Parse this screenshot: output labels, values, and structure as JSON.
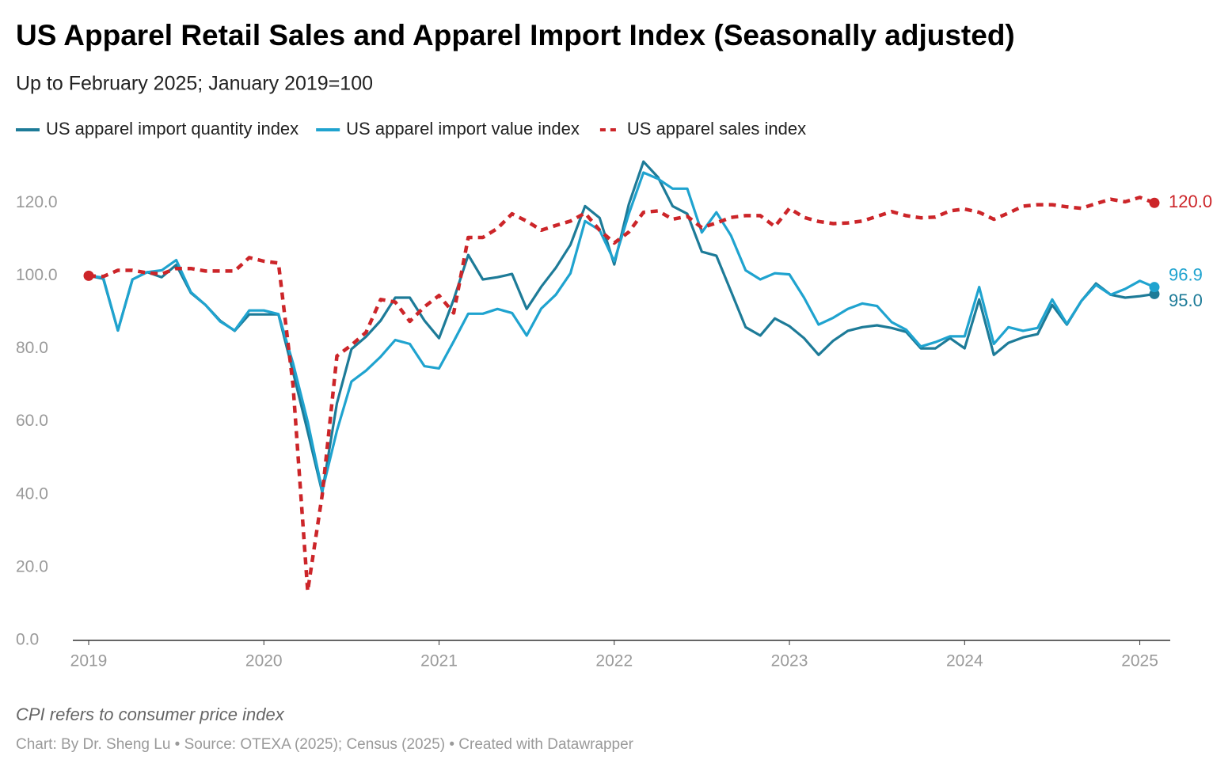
{
  "chart_data": {
    "type": "line",
    "title": "US Apparel Retail Sales and Apparel Import Index (Seasonally adjusted)",
    "subtitle": "Up to February 2025; January 2019=100",
    "note": "CPI refers to consumer price index",
    "source": "Chart: By Dr. Sheng Lu • Source: OTEXA (2025); Census (2025) • Created with Datawrapper",
    "x": [
      "2019-01",
      "2019-02",
      "2019-03",
      "2019-04",
      "2019-05",
      "2019-06",
      "2019-07",
      "2019-08",
      "2019-09",
      "2019-10",
      "2019-11",
      "2019-12",
      "2020-01",
      "2020-02",
      "2020-03",
      "2020-04",
      "2020-05",
      "2020-06",
      "2020-07",
      "2020-08",
      "2020-09",
      "2020-10",
      "2020-11",
      "2020-12",
      "2021-01",
      "2021-02",
      "2021-03",
      "2021-04",
      "2021-05",
      "2021-06",
      "2021-07",
      "2021-08",
      "2021-09",
      "2021-10",
      "2021-11",
      "2021-12",
      "2022-01",
      "2022-02",
      "2022-03",
      "2022-04",
      "2022-05",
      "2022-06",
      "2022-07",
      "2022-08",
      "2022-09",
      "2022-10",
      "2022-11",
      "2022-12",
      "2023-01",
      "2023-02",
      "2023-03",
      "2023-04",
      "2023-05",
      "2023-06",
      "2023-07",
      "2023-08",
      "2023-09",
      "2023-10",
      "2023-11",
      "2023-12",
      "2024-01",
      "2024-02",
      "2024-03",
      "2024-04",
      "2024-05",
      "2024-06",
      "2024-07",
      "2024-08",
      "2024-09",
      "2024-10",
      "2024-11",
      "2024-12",
      "2025-01",
      "2025-02"
    ],
    "xticks": [
      {
        "value": "2019-01",
        "label": "2019"
      },
      {
        "value": "2020-01",
        "label": "2020"
      },
      {
        "value": "2021-01",
        "label": "2021"
      },
      {
        "value": "2022-01",
        "label": "2022"
      },
      {
        "value": "2023-01",
        "label": "2023"
      },
      {
        "value": "2024-01",
        "label": "2024"
      },
      {
        "value": "2025-01",
        "label": "2025"
      }
    ],
    "ylim": [
      0,
      132
    ],
    "yticks": [
      {
        "value": 0,
        "label": "0.0"
      },
      {
        "value": 20,
        "label": "20.0"
      },
      {
        "value": 40,
        "label": "40.0"
      },
      {
        "value": 60,
        "label": "60.0"
      },
      {
        "value": 80,
        "label": "80.0"
      },
      {
        "value": 100,
        "label": "100.0"
      },
      {
        "value": 120,
        "label": "120.0"
      }
    ],
    "grid": false,
    "series": [
      {
        "name": "US apparel import quantity index",
        "color": "#1d7b98",
        "dashed": false,
        "values": [
          100,
          99.2,
          85,
          99,
          101,
          99.6,
          103,
          95.3,
          92,
          87.7,
          84.9,
          89.4,
          89.4,
          89.4,
          73.6,
          57.3,
          40.6,
          65,
          79.9,
          83.3,
          87.7,
          94,
          94,
          87.7,
          82.9,
          93.5,
          105.7,
          99,
          99.6,
          100.5,
          90.9,
          97,
          102.2,
          108.5,
          119.1,
          115.9,
          103.1,
          119.6,
          131.3,
          127,
          119.1,
          117,
          106.6,
          105.5,
          95.7,
          85.9,
          83.6,
          88.3,
          86.2,
          82.9,
          78.3,
          82.2,
          84.9,
          85.9,
          86.4,
          85.7,
          84.6,
          80.1,
          80.1,
          82.9,
          80.1,
          93.5,
          78.3,
          81.6,
          83.1,
          84,
          92,
          86.6,
          93.1,
          97.9,
          94.8,
          94,
          94.4,
          95.0
        ],
        "value_labels": [
          null,
          null,
          null,
          null,
          null,
          null,
          null,
          null,
          null,
          null,
          null,
          null,
          null,
          null,
          null,
          null,
          null,
          null,
          null,
          null,
          null,
          null,
          null,
          null,
          null,
          null,
          null,
          null,
          null,
          null,
          null,
          null,
          null,
          null,
          null,
          null,
          null,
          null,
          null,
          null,
          null,
          null,
          null,
          null,
          null,
          null,
          null,
          null,
          null,
          null,
          null,
          null,
          null,
          null,
          null,
          null,
          null,
          null,
          null,
          null,
          null,
          null,
          null,
          null,
          null,
          null,
          null,
          null,
          null,
          null,
          null,
          null,
          null,
          "95.0"
        ]
      },
      {
        "name": "US apparel import value index",
        "color": "#1fa3cf",
        "dashed": false,
        "values": [
          100,
          99.5,
          85,
          99,
          101,
          101.5,
          104.3,
          95.5,
          92,
          87.5,
          85,
          90.5,
          90.5,
          89.5,
          76,
          60,
          41,
          57.5,
          71,
          74,
          77.8,
          82.4,
          81.3,
          75.2,
          74.6,
          82,
          89.6,
          89.6,
          90.9,
          89.8,
          83.6,
          91,
          94.8,
          100.7,
          115,
          112.5,
          104,
          117,
          128.3,
          126.6,
          123.9,
          123.9,
          111.9,
          117.4,
          111,
          101.5,
          99,
          100.7,
          100.4,
          94,
          86.6,
          88.5,
          90.9,
          92.4,
          91.7,
          87.3,
          85.2,
          80.6,
          81.8,
          83.4,
          83.4,
          96.9,
          81.3,
          85.9,
          84.9,
          85.7,
          93.5,
          86.8,
          93.1,
          97.5,
          94.8,
          96.4,
          98.6,
          96.9
        ],
        "value_labels": [
          null,
          null,
          null,
          null,
          null,
          null,
          null,
          null,
          null,
          null,
          null,
          null,
          null,
          null,
          null,
          null,
          null,
          null,
          null,
          null,
          null,
          null,
          null,
          null,
          null,
          null,
          null,
          null,
          null,
          null,
          null,
          null,
          null,
          null,
          null,
          null,
          null,
          null,
          null,
          null,
          null,
          null,
          null,
          null,
          null,
          null,
          null,
          null,
          null,
          null,
          null,
          null,
          null,
          null,
          null,
          null,
          null,
          null,
          null,
          null,
          null,
          null,
          null,
          null,
          null,
          null,
          null,
          null,
          null,
          null,
          null,
          null,
          null,
          "96.9"
        ]
      },
      {
        "name": "US apparel sales index",
        "color": "#cc2529",
        "dashed": true,
        "values": [
          100,
          99.8,
          101.5,
          101.5,
          100.8,
          100.5,
          102,
          102,
          101.3,
          101.3,
          101.3,
          105,
          104,
          103.5,
          70,
          13.5,
          40,
          78,
          81,
          84.5,
          93.5,
          92.8,
          87.5,
          91.5,
          94.6,
          89.8,
          110.5,
          110.5,
          113,
          117,
          115,
          112.5,
          113.8,
          115,
          117.2,
          112.5,
          109,
          112,
          117.4,
          117.8,
          115.5,
          116.3,
          113.2,
          114.5,
          116,
          116.5,
          116.5,
          113.5,
          118.5,
          116,
          114.9,
          114.3,
          114.5,
          115,
          116.3,
          117.6,
          116.5,
          115.9,
          116.1,
          117.8,
          118.3,
          117.4,
          115.5,
          117.2,
          119.1,
          119.5,
          119.5,
          118.9,
          118.5,
          119.8,
          121,
          120.3,
          121.5,
          120.0
        ],
        "value_labels": [
          null,
          null,
          null,
          null,
          null,
          null,
          null,
          null,
          null,
          null,
          null,
          null,
          null,
          null,
          null,
          null,
          null,
          null,
          null,
          null,
          null,
          null,
          null,
          null,
          null,
          null,
          null,
          null,
          null,
          null,
          null,
          null,
          null,
          null,
          null,
          null,
          null,
          null,
          null,
          null,
          null,
          null,
          null,
          null,
          null,
          null,
          null,
          null,
          null,
          null,
          null,
          null,
          null,
          null,
          null,
          null,
          null,
          null,
          null,
          null,
          null,
          null,
          null,
          null,
          null,
          null,
          null,
          null,
          null,
          null,
          null,
          null,
          null,
          "120.0"
        ]
      }
    ]
  }
}
